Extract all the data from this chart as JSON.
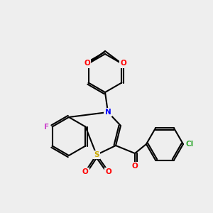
{
  "bg_color": "#eeeeee",
  "bond_color": "#000000",
  "atom_colors": {
    "O": "#ff0000",
    "N": "#0000ff",
    "S": "#ccaa00",
    "F": "#cc44cc",
    "Cl": "#33aa33",
    "C": "#000000"
  }
}
